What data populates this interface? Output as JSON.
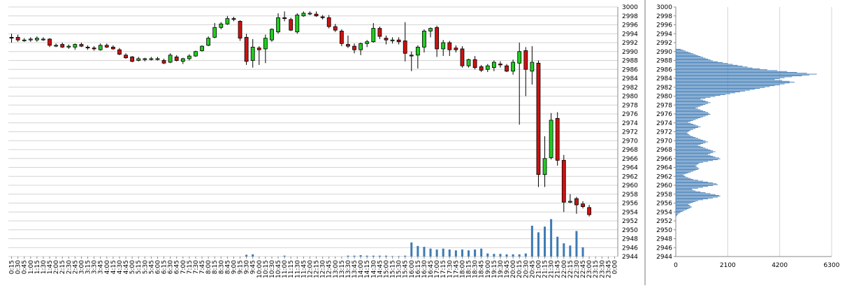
{
  "chart_data": [
    {
      "type": "candlestick",
      "title": "",
      "ylim": [
        2944,
        3000
      ],
      "y_ticks": [
        2944,
        2946,
        2948,
        2950,
        2952,
        2954,
        2956,
        2958,
        2960,
        2962,
        2964,
        2966,
        2968,
        2970,
        2972,
        2974,
        2976,
        2978,
        2980,
        2982,
        2984,
        2986,
        2988,
        2990,
        2992,
        2994,
        2996,
        2998,
        3000
      ],
      "x_tick_labels": [
        "0:15",
        "0:30",
        "0:45",
        "1:00",
        "1:15",
        "1:30",
        "1:45",
        "2:00",
        "2:15",
        "2:30",
        "2:45",
        "3:00",
        "3:15",
        "3:30",
        "3:45",
        "4:00",
        "4:15",
        "4:30",
        "4:45",
        "5:00",
        "5:15",
        "5:30",
        "5:45",
        "6:00",
        "6:15",
        "6:30",
        "6:45",
        "7:00",
        "7:15",
        "7:30",
        "7:45",
        "8:00",
        "8:15",
        "8:30",
        "8:45",
        "9:00",
        "9:15",
        "9:30",
        "9:45",
        "10:00",
        "10:15",
        "10:30",
        "10:45",
        "11:00",
        "11:15",
        "11:30",
        "11:45",
        "12:00",
        "12:15",
        "12:30",
        "12:45",
        "13:00",
        "13:15",
        "13:30",
        "13:45",
        "14:00",
        "14:15",
        "14:30",
        "14:45",
        "15:00",
        "15:15",
        "15:30",
        "15:45",
        "16:00",
        "16:15",
        "16:30",
        "16:45",
        "17:00",
        "17:15",
        "17:30",
        "17:45",
        "18:00",
        "18:15",
        "18:30",
        "18:45",
        "19:00",
        "19:15",
        "19:30",
        "19:45",
        "20:00",
        "20:15",
        "20:30",
        "20:45",
        "21:00",
        "21:15",
        "21:30",
        "21:45",
        "22:00",
        "22:15",
        "22:30",
        "22:45",
        "23:00",
        "23:15",
        "23:30",
        "23:45",
        "0:00"
      ],
      "up_color": "#22cc22",
      "down_color": "#cc1111",
      "volume_color": "#3d7ab5",
      "grid": true,
      "candles": [
        {
          "o": 2993.2,
          "h": 2994.0,
          "l": 2992.0,
          "c": 2993.0
        },
        {
          "o": 2993.2,
          "h": 2993.8,
          "l": 2992.2,
          "c": 2992.6
        },
        {
          "o": 2992.6,
          "h": 2993.0,
          "l": 2992.2,
          "c": 2992.6
        },
        {
          "o": 2992.6,
          "h": 2993.2,
          "l": 2992.2,
          "c": 2992.8
        },
        {
          "o": 2992.6,
          "h": 2993.4,
          "l": 2992.2,
          "c": 2993.0
        },
        {
          "o": 2992.8,
          "h": 2993.2,
          "l": 2992.4,
          "c": 2992.8
        },
        {
          "o": 2992.8,
          "h": 2993.0,
          "l": 2991.0,
          "c": 2991.4
        },
        {
          "o": 2991.4,
          "h": 2991.8,
          "l": 2991.0,
          "c": 2991.4
        },
        {
          "o": 2991.6,
          "h": 2992.0,
          "l": 2990.8,
          "c": 2991.0
        },
        {
          "o": 2991.0,
          "h": 2991.6,
          "l": 2990.6,
          "c": 2991.2
        },
        {
          "o": 2991.0,
          "h": 2991.8,
          "l": 2990.4,
          "c": 2991.6
        },
        {
          "o": 2991.6,
          "h": 2992.0,
          "l": 2991.0,
          "c": 2991.2
        },
        {
          "o": 2991.0,
          "h": 2991.4,
          "l": 2990.4,
          "c": 2990.8
        },
        {
          "o": 2990.8,
          "h": 2991.2,
          "l": 2990.2,
          "c": 2990.6
        },
        {
          "o": 2990.4,
          "h": 2991.8,
          "l": 2990.2,
          "c": 2991.4
        },
        {
          "o": 2991.4,
          "h": 2991.8,
          "l": 2990.8,
          "c": 2991.0
        },
        {
          "o": 2991.0,
          "h": 2991.4,
          "l": 2990.4,
          "c": 2990.6
        },
        {
          "o": 2990.4,
          "h": 2990.8,
          "l": 2989.2,
          "c": 2989.4
        },
        {
          "o": 2989.2,
          "h": 2989.6,
          "l": 2988.4,
          "c": 2988.6
        },
        {
          "o": 2988.8,
          "h": 2989.0,
          "l": 2987.6,
          "c": 2987.8
        },
        {
          "o": 2988.0,
          "h": 2988.8,
          "l": 2987.8,
          "c": 2988.4
        },
        {
          "o": 2988.2,
          "h": 2988.6,
          "l": 2987.8,
          "c": 2988.4
        },
        {
          "o": 2988.4,
          "h": 2988.8,
          "l": 2988.0,
          "c": 2988.4
        },
        {
          "o": 2988.4,
          "h": 2988.8,
          "l": 2988.0,
          "c": 2988.4
        },
        {
          "o": 2988.0,
          "h": 2988.4,
          "l": 2987.2,
          "c": 2987.4
        },
        {
          "o": 2987.6,
          "h": 2989.6,
          "l": 2987.4,
          "c": 2989.2
        },
        {
          "o": 2988.8,
          "h": 2989.2,
          "l": 2987.8,
          "c": 2988.0
        },
        {
          "o": 2987.8,
          "h": 2988.6,
          "l": 2987.2,
          "c": 2988.4
        },
        {
          "o": 2988.4,
          "h": 2989.4,
          "l": 2988.0,
          "c": 2989.0
        },
        {
          "o": 2989.0,
          "h": 2990.2,
          "l": 2988.8,
          "c": 2990.0
        },
        {
          "o": 2990.2,
          "h": 2991.4,
          "l": 2990.0,
          "c": 2991.2
        },
        {
          "o": 2991.4,
          "h": 2993.4,
          "l": 2991.2,
          "c": 2993.0
        },
        {
          "o": 2993.2,
          "h": 2996.4,
          "l": 2993.0,
          "c": 2995.4
        },
        {
          "o": 2995.4,
          "h": 2996.6,
          "l": 2995.0,
          "c": 2996.2
        },
        {
          "o": 2996.2,
          "h": 2998.0,
          "l": 2996.0,
          "c": 2997.4
        },
        {
          "o": 2997.4,
          "h": 2997.8,
          "l": 2996.8,
          "c": 2997.2
        },
        {
          "o": 2996.8,
          "h": 2997.0,
          "l": 2992.4,
          "c": 2993.0
        },
        {
          "o": 2993.2,
          "h": 2994.0,
          "l": 2987.0,
          "c": 2987.8
        },
        {
          "o": 2988.0,
          "h": 2992.8,
          "l": 2986.4,
          "c": 2991.0
        },
        {
          "o": 2990.8,
          "h": 2991.2,
          "l": 2987.0,
          "c": 2990.4
        },
        {
          "o": 2990.6,
          "h": 2993.8,
          "l": 2987.4,
          "c": 2993.0
        },
        {
          "o": 2992.6,
          "h": 2995.2,
          "l": 2992.2,
          "c": 2995.0
        },
        {
          "o": 2994.4,
          "h": 2998.6,
          "l": 2994.0,
          "c": 2997.6
        },
        {
          "o": 2997.6,
          "h": 2999.0,
          "l": 2996.8,
          "c": 2997.4
        },
        {
          "o": 2997.2,
          "h": 2997.6,
          "l": 2994.6,
          "c": 2994.8
        },
        {
          "o": 2994.4,
          "h": 2998.6,
          "l": 2994.0,
          "c": 2998.2
        },
        {
          "o": 2998.0,
          "h": 2999.0,
          "l": 2997.8,
          "c": 2998.6
        },
        {
          "o": 2998.6,
          "h": 2999.0,
          "l": 2998.2,
          "c": 2998.6
        },
        {
          "o": 2998.4,
          "h": 2999.0,
          "l": 2997.8,
          "c": 2998.0
        },
        {
          "o": 2997.8,
          "h": 2998.2,
          "l": 2997.2,
          "c": 2997.6
        },
        {
          "o": 2997.6,
          "h": 2998.2,
          "l": 2995.2,
          "c": 2995.6
        },
        {
          "o": 2995.6,
          "h": 2996.2,
          "l": 2994.4,
          "c": 2994.8
        },
        {
          "o": 2994.6,
          "h": 2995.0,
          "l": 2991.2,
          "c": 2991.8
        },
        {
          "o": 2991.6,
          "h": 2993.6,
          "l": 2990.8,
          "c": 2991.2
        },
        {
          "o": 2991.2,
          "h": 2991.8,
          "l": 2989.6,
          "c": 2990.4
        },
        {
          "o": 2990.4,
          "h": 2992.0,
          "l": 2989.2,
          "c": 2991.8
        },
        {
          "o": 2991.8,
          "h": 2992.6,
          "l": 2991.0,
          "c": 2992.2
        },
        {
          "o": 2992.2,
          "h": 2996.4,
          "l": 2992.0,
          "c": 2995.2
        },
        {
          "o": 2995.2,
          "h": 2995.6,
          "l": 2992.8,
          "c": 2993.4
        },
        {
          "o": 2993.0,
          "h": 2993.6,
          "l": 2991.6,
          "c": 2992.6
        },
        {
          "o": 2992.6,
          "h": 2993.2,
          "l": 2991.8,
          "c": 2992.6
        },
        {
          "o": 2992.6,
          "h": 2993.2,
          "l": 2991.6,
          "c": 2992.2
        },
        {
          "o": 2992.4,
          "h": 2996.6,
          "l": 2987.8,
          "c": 2989.6
        },
        {
          "o": 2989.2,
          "h": 2990.0,
          "l": 2985.6,
          "c": 2989.0
        },
        {
          "o": 2989.2,
          "h": 2991.4,
          "l": 2986.2,
          "c": 2991.0
        },
        {
          "o": 2991.0,
          "h": 2995.0,
          "l": 2989.8,
          "c": 2994.6
        },
        {
          "o": 2994.6,
          "h": 2995.4,
          "l": 2993.2,
          "c": 2995.2
        },
        {
          "o": 2995.4,
          "h": 2995.8,
          "l": 2988.8,
          "c": 2990.6
        },
        {
          "o": 2990.6,
          "h": 2992.6,
          "l": 2989.0,
          "c": 2992.0
        },
        {
          "o": 2992.0,
          "h": 2992.4,
          "l": 2989.0,
          "c": 2990.4
        },
        {
          "o": 2990.8,
          "h": 2991.4,
          "l": 2989.8,
          "c": 2990.4
        },
        {
          "o": 2990.6,
          "h": 2991.2,
          "l": 2986.4,
          "c": 2986.8
        },
        {
          "o": 2986.8,
          "h": 2988.4,
          "l": 2986.4,
          "c": 2988.2
        },
        {
          "o": 2988.2,
          "h": 2989.0,
          "l": 2986.0,
          "c": 2986.4
        },
        {
          "o": 2986.6,
          "h": 2987.0,
          "l": 2985.4,
          "c": 2985.8
        },
        {
          "o": 2986.0,
          "h": 2987.2,
          "l": 2985.4,
          "c": 2986.8
        },
        {
          "o": 2986.4,
          "h": 2988.0,
          "l": 2985.6,
          "c": 2987.6
        },
        {
          "o": 2987.2,
          "h": 2987.8,
          "l": 2986.4,
          "c": 2987.0
        },
        {
          "o": 2986.8,
          "h": 2987.2,
          "l": 2985.4,
          "c": 2985.6
        },
        {
          "o": 2985.6,
          "h": 2988.2,
          "l": 2984.8,
          "c": 2987.6
        },
        {
          "o": 2987.4,
          "h": 2992.0,
          "l": 2973.6,
          "c": 2990.0
        },
        {
          "o": 2990.2,
          "h": 2991.0,
          "l": 2980.0,
          "c": 2986.0
        },
        {
          "o": 2985.6,
          "h": 2991.2,
          "l": 2982.6,
          "c": 2987.6
        },
        {
          "o": 2987.4,
          "h": 2988.0,
          "l": 2959.6,
          "c": 2962.4
        },
        {
          "o": 2962.4,
          "h": 2971.0,
          "l": 2959.6,
          "c": 2966.0
        },
        {
          "o": 2966.2,
          "h": 2976.2,
          "l": 2965.8,
          "c": 2974.6
        },
        {
          "o": 2975.0,
          "h": 2976.4,
          "l": 2964.4,
          "c": 2965.6
        },
        {
          "o": 2965.6,
          "h": 2966.8,
          "l": 2954.0,
          "c": 2956.2
        },
        {
          "o": 2956.2,
          "h": 2958.0,
          "l": 2956.0,
          "c": 2956.4
        },
        {
          "o": 2957.0,
          "h": 2957.4,
          "l": 2953.6,
          "c": 2955.6
        },
        {
          "o": 2955.8,
          "h": 2956.4,
          "l": 2954.8,
          "c": 2955.2
        },
        {
          "o": 2955.0,
          "h": 2955.6,
          "l": 2953.0,
          "c": 2953.4
        }
      ],
      "volume": [
        0,
        0,
        0,
        0,
        0,
        0,
        0,
        0,
        0,
        0,
        0,
        0,
        0,
        0,
        0,
        0,
        0,
        0,
        0,
        0,
        0,
        0,
        0,
        0,
        0,
        0,
        0,
        0,
        0,
        0,
        0,
        0,
        0,
        0,
        0,
        0,
        0,
        0.4,
        0.5,
        0,
        0,
        0,
        0,
        0.2,
        0,
        0,
        0,
        0,
        0,
        0,
        0,
        0,
        0,
        0.2,
        0.2,
        0.3,
        0.2,
        0.2,
        0.2,
        0.2,
        0.1,
        0.1,
        0.2,
        3.2,
        2.4,
        2.2,
        1.8,
        1.6,
        1.8,
        1.6,
        1.4,
        1.6,
        1.4,
        1.6,
        1.8,
        0.7,
        0.6,
        0.6,
        0.5,
        0.5,
        0.5,
        0.7,
        7.0,
        5.5,
        6.8,
        8.5,
        4.5,
        3.0,
        2.5,
        5.8,
        2.1,
        0,
        0,
        0,
        0,
        0
      ]
    },
    {
      "type": "horizontal-bar",
      "title": "",
      "xlim": [
        0,
        6300
      ],
      "x_ticks": [
        0,
        2100,
        4200,
        6300
      ],
      "ylim": [
        2944,
        3000
      ],
      "y_ticks": [
        2944,
        2946,
        2948,
        2950,
        2952,
        2954,
        2956,
        2958,
        2960,
        2962,
        2964,
        2966,
        2968,
        2970,
        2972,
        2974,
        2976,
        2978,
        2980,
        2982,
        2984,
        2986,
        2988,
        2990,
        2992,
        2994,
        2996,
        2998,
        3000
      ],
      "bar_color": "#3d7ab5",
      "grid": true,
      "price_step": 0.2,
      "price_start": 2953.0,
      "volume_profile": [
        40,
        60,
        90,
        150,
        200,
        280,
        350,
        450,
        520,
        600,
        650,
        600,
        550,
        500,
        600,
        700,
        800,
        900,
        1100,
        1300,
        1500,
        1700,
        1800,
        1750,
        1600,
        1400,
        1200,
        1000,
        800,
        700,
        650,
        900,
        1100,
        1300,
        1500,
        1700,
        1650,
        1500,
        1300,
        1100,
        900,
        700,
        600,
        500,
        400,
        350,
        300,
        400,
        500,
        600,
        700,
        800,
        900,
        950,
        900,
        850,
        800,
        850,
        900,
        950,
        1100,
        1300,
        1500,
        1700,
        1800,
        1750,
        1600,
        1500,
        1400,
        1300,
        1400,
        1500,
        1600,
        1500,
        1400,
        1300,
        1200,
        1100,
        1000,
        900,
        1000,
        1100,
        1200,
        1300,
        1200,
        1100,
        1000,
        900,
        800,
        700,
        600,
        550,
        500,
        450,
        500,
        550,
        600,
        700,
        800,
        900,
        1000,
        900,
        800,
        700,
        600,
        500,
        600,
        700,
        800,
        900,
        1000,
        1100,
        1200,
        1300,
        1400,
        1350,
        1300,
        1200,
        1100,
        1000,
        900,
        800,
        900,
        1000,
        1100,
        1200,
        1300,
        1400,
        1300,
        1200,
        1100,
        1000,
        1200,
        1400,
        1600,
        1800,
        2000,
        2200,
        2400,
        2600,
        2800,
        3000,
        3200,
        3400,
        3600,
        3800,
        4000,
        4200,
        4400,
        4600,
        4800,
        4600,
        4300,
        4000,
        4200,
        4400,
        4700,
        5100,
        5400,
        5700,
        5300,
        4900,
        4500,
        4100,
        3700,
        3400,
        3100,
        2900,
        2700,
        2500,
        2300,
        2100,
        1900,
        1700,
        1500,
        1400,
        1300,
        1200,
        1100,
        1000,
        900,
        800,
        700,
        600,
        500,
        400,
        300,
        200
      ]
    }
  ]
}
